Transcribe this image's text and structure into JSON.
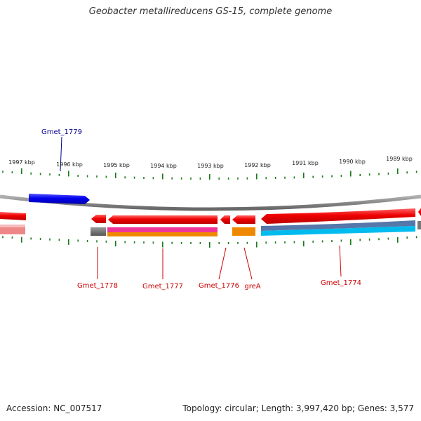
{
  "title": "Geobacter metallireducens GS-15, complete genome",
  "footer": {
    "accession": "Accession: NC_007517",
    "summary": "Topology: circular; Length: 3,997,420 bp; Genes: 3,577"
  },
  "scale": {
    "labels": [
      "1997 kbp",
      "1996 kbp",
      "1995 kbp",
      "1994 kbp",
      "1993 kbp",
      "1992 kbp",
      "1991 kbp",
      "1990 kbp",
      "1989 kbp"
    ]
  },
  "genes": [
    {
      "name": "Gmet_1779",
      "color": "#00008b"
    },
    {
      "name": "Gmet_1778",
      "color": "#cc0000"
    },
    {
      "name": "Gmet_1777",
      "color": "#cc0000"
    },
    {
      "name": "Gmet_1776",
      "color": "#cc0000"
    },
    {
      "name": "greA",
      "color": "#cc0000"
    },
    {
      "name": "Gmet_1774",
      "color": "#cc0000"
    }
  ],
  "colors": {
    "forward_gene": "#0000ee",
    "reverse_gene": "#ee0000",
    "backbone": "#8a8a8a",
    "tick": "#1a7a1a",
    "feature_gray": "#666666",
    "feature_magenta": "#ee3399",
    "feature_orange": "#ee8800",
    "feature_steel": "#5577aa",
    "feature_cyan": "#00bbee",
    "feature_pink": "#ee8888"
  }
}
